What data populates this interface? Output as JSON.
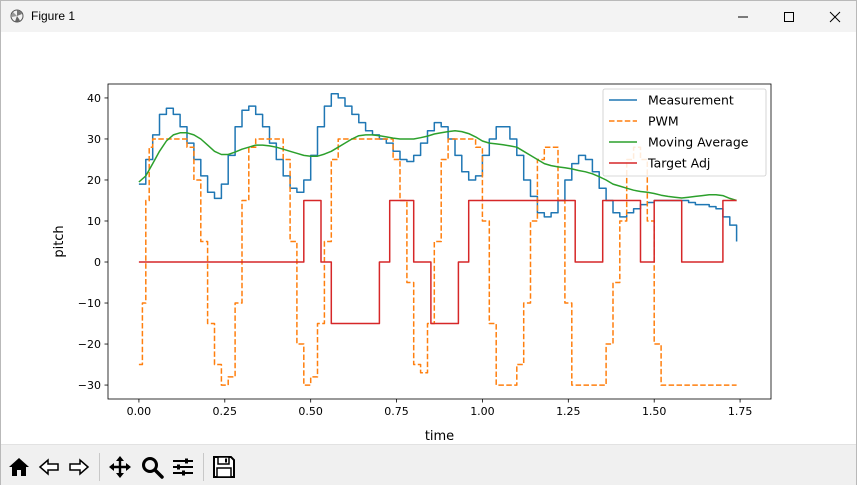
{
  "window": {
    "title": "Figure 1",
    "icons": [
      "matplotlib-icon",
      "minimize-icon",
      "maximize-icon",
      "close-icon"
    ]
  },
  "toolbar": {
    "buttons": [
      {
        "name": "home-icon"
      },
      {
        "name": "back-icon"
      },
      {
        "name": "forward-icon"
      },
      {
        "name": "pan-icon"
      },
      {
        "name": "zoom-icon"
      },
      {
        "name": "subplots-icon"
      },
      {
        "name": "save-icon"
      }
    ]
  },
  "chart_data": {
    "type": "line",
    "title": "",
    "xlabel": "time",
    "ylabel": "pitch",
    "xlim": [
      -0.09,
      1.84
    ],
    "ylim": [
      -33.4,
      43.4
    ],
    "xticks": [
      0.0,
      0.25,
      0.5,
      0.75,
      1.0,
      1.25,
      1.5,
      1.75
    ],
    "xtick_labels": [
      "0.00",
      "0.25",
      "0.50",
      "0.75",
      "1.00",
      "1.25",
      "1.50",
      "1.75"
    ],
    "yticks": [
      -30,
      -20,
      -10,
      0,
      10,
      20,
      30,
      40
    ],
    "ytick_labels": [
      "−30",
      "−20",
      "−10",
      "0",
      "10",
      "20",
      "30",
      "40"
    ],
    "grid": false,
    "legend_position": "top-right",
    "series": [
      {
        "name": "Measurement",
        "color": "#1f77b4",
        "style": "step-solid",
        "x": [
          0.0,
          0.02,
          0.04,
          0.06,
          0.08,
          0.1,
          0.12,
          0.14,
          0.16,
          0.18,
          0.2,
          0.22,
          0.24,
          0.26,
          0.28,
          0.3,
          0.32,
          0.34,
          0.36,
          0.38,
          0.4,
          0.42,
          0.44,
          0.46,
          0.48,
          0.5,
          0.52,
          0.54,
          0.56,
          0.58,
          0.6,
          0.62,
          0.64,
          0.66,
          0.68,
          0.7,
          0.72,
          0.74,
          0.76,
          0.78,
          0.8,
          0.82,
          0.84,
          0.86,
          0.88,
          0.9,
          0.92,
          0.94,
          0.96,
          0.98,
          1.0,
          1.02,
          1.04,
          1.06,
          1.08,
          1.1,
          1.12,
          1.14,
          1.16,
          1.18,
          1.2,
          1.22,
          1.24,
          1.26,
          1.28,
          1.3,
          1.32,
          1.34,
          1.36,
          1.38,
          1.4,
          1.42,
          1.44,
          1.46,
          1.48,
          1.5,
          1.52,
          1.54,
          1.56,
          1.58,
          1.6,
          1.62,
          1.64,
          1.66,
          1.68,
          1.7,
          1.72,
          1.74
        ],
        "y": [
          19,
          25,
          31,
          36,
          37.5,
          36,
          33,
          29,
          25,
          21,
          17,
          15.5,
          19,
          26,
          33,
          37,
          38,
          36,
          33,
          29,
          25,
          21,
          18,
          17,
          20,
          26,
          33,
          38,
          41,
          40,
          38,
          36,
          34,
          32,
          31,
          30,
          29,
          27,
          25,
          24.5,
          26,
          29,
          32,
          34,
          33,
          30,
          26,
          22,
          20,
          21,
          26,
          30,
          33,
          33,
          30,
          26,
          20,
          16,
          12,
          11,
          12,
          15,
          20,
          24,
          26,
          25,
          22,
          18,
          15,
          12,
          11,
          12,
          13,
          14,
          14.5,
          15,
          15,
          15,
          15,
          15,
          14.5,
          14,
          14,
          13.5,
          13,
          11,
          9,
          5
        ]
      },
      {
        "name": "PWM",
        "color": "#ff7f0e",
        "style": "step-dashed",
        "x": [
          0.0,
          0.01,
          0.02,
          0.03,
          0.04,
          0.06,
          0.08,
          0.1,
          0.12,
          0.14,
          0.16,
          0.18,
          0.2,
          0.22,
          0.24,
          0.26,
          0.28,
          0.3,
          0.32,
          0.34,
          0.36,
          0.38,
          0.4,
          0.42,
          0.44,
          0.46,
          0.48,
          0.5,
          0.52,
          0.54,
          0.56,
          0.58,
          0.6,
          0.62,
          0.64,
          0.66,
          0.68,
          0.7,
          0.72,
          0.74,
          0.76,
          0.78,
          0.8,
          0.82,
          0.84,
          0.86,
          0.88,
          0.9,
          0.92,
          0.94,
          0.96,
          0.98,
          1.0,
          1.02,
          1.04,
          1.06,
          1.08,
          1.1,
          1.12,
          1.14,
          1.16,
          1.18,
          1.2,
          1.22,
          1.24,
          1.26,
          1.28,
          1.3,
          1.32,
          1.34,
          1.36,
          1.38,
          1.4,
          1.42,
          1.44,
          1.46,
          1.48,
          1.5,
          1.52,
          1.54,
          1.56,
          1.58,
          1.6,
          1.62,
          1.64,
          1.66,
          1.68,
          1.7,
          1.72,
          1.74
        ],
        "y": [
          -25,
          -10,
          15,
          28,
          30,
          30,
          30,
          30,
          30,
          28,
          20,
          5,
          -15,
          -25,
          -30,
          -28,
          -10,
          15,
          28,
          30,
          30,
          30,
          30,
          25,
          5,
          -20,
          -30,
          -28,
          -15,
          5,
          25,
          30,
          30,
          30,
          30,
          30,
          30,
          30,
          30,
          25,
          15,
          -5,
          -25,
          -27,
          -15,
          5,
          25,
          30,
          30,
          30,
          30,
          28,
          10,
          -15,
          -30,
          -30,
          -30,
          -25,
          -10,
          10,
          25,
          28,
          28,
          15,
          -10,
          -30,
          -30,
          -30,
          -30,
          -30,
          -20,
          -5,
          10,
          25,
          28,
          25,
          10,
          -20,
          -30,
          -30,
          -30,
          -30,
          -30,
          -30,
          -30,
          -30,
          -30,
          -30,
          -30,
          -30
        ]
      },
      {
        "name": "Moving Average",
        "color": "#2ca02c",
        "style": "solid",
        "x": [
          0.0,
          0.02,
          0.04,
          0.06,
          0.08,
          0.1,
          0.12,
          0.14,
          0.16,
          0.18,
          0.2,
          0.22,
          0.24,
          0.26,
          0.28,
          0.3,
          0.32,
          0.34,
          0.36,
          0.38,
          0.4,
          0.42,
          0.44,
          0.46,
          0.48,
          0.5,
          0.52,
          0.54,
          0.56,
          0.58,
          0.6,
          0.62,
          0.64,
          0.66,
          0.68,
          0.7,
          0.72,
          0.74,
          0.76,
          0.78,
          0.8,
          0.82,
          0.84,
          0.86,
          0.88,
          0.9,
          0.92,
          0.94,
          0.96,
          0.98,
          1.0,
          1.02,
          1.04,
          1.06,
          1.08,
          1.1,
          1.12,
          1.14,
          1.16,
          1.18,
          1.2,
          1.22,
          1.24,
          1.26,
          1.28,
          1.3,
          1.32,
          1.34,
          1.36,
          1.38,
          1.4,
          1.42,
          1.44,
          1.46,
          1.48,
          1.5,
          1.52,
          1.54,
          1.56,
          1.58,
          1.6,
          1.62,
          1.64,
          1.66,
          1.68,
          1.7,
          1.72,
          1.74
        ],
        "y": [
          19.5,
          21,
          24,
          27,
          29.5,
          31,
          31.5,
          31.5,
          31,
          30,
          28.5,
          27,
          26.2,
          26.2,
          26.8,
          27.5,
          28,
          28.5,
          28.5,
          28.3,
          28,
          27.5,
          27,
          26.5,
          26,
          25.8,
          25.8,
          26.3,
          27,
          28,
          29,
          30,
          30.8,
          31,
          31,
          30.8,
          30.5,
          30.2,
          30,
          30,
          30,
          30.3,
          30.7,
          31.2,
          31.5,
          31.8,
          32,
          31.8,
          31.3,
          30.5,
          29.5,
          29,
          28.8,
          28.6,
          28.3,
          28,
          27,
          26,
          25,
          24,
          23.5,
          23.2,
          23,
          22.7,
          22.3,
          22,
          21.5,
          20.8,
          20,
          19,
          18.5,
          18,
          17.5,
          17.2,
          17,
          16.7,
          16.3,
          16,
          15.8,
          15.6,
          15.8,
          16,
          16.2,
          16.4,
          16.4,
          16.2,
          15.5,
          15
        ]
      },
      {
        "name": "Target Adj",
        "color": "#d62728",
        "style": "step-solid",
        "x": [
          0.0,
          0.48,
          0.53,
          0.56,
          0.7,
          0.73,
          0.8,
          0.85,
          0.93,
          0.96,
          1.27,
          1.35,
          1.46,
          1.5,
          1.58,
          1.7,
          1.74
        ],
        "y": [
          0,
          15,
          0,
          -15,
          0,
          15,
          0,
          -15,
          0,
          15,
          0,
          15,
          0,
          15,
          0,
          15,
          15
        ]
      }
    ]
  }
}
